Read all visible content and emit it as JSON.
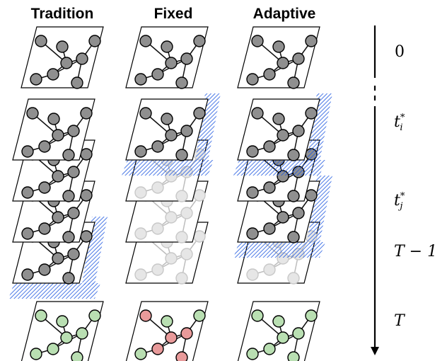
{
  "columns": [
    {
      "title": "Tradition"
    },
    {
      "title": "Fixed"
    },
    {
      "title": "Adaptive"
    }
  ],
  "time_axis": {
    "labels": [
      {
        "base": "0",
        "sup": "",
        "sub": "",
        "italic": false
      },
      {
        "base": "t",
        "sup": "*",
        "sub": "i",
        "italic": true
      },
      {
        "base": "t",
        "sup": "*",
        "sub": "j",
        "italic": true
      },
      {
        "base": "T − 1",
        "sup": "",
        "sub": "",
        "italic": true
      },
      {
        "base": "T",
        "sup": "",
        "sub": "",
        "italic": true
      }
    ]
  },
  "colors": {
    "node_gray": "#8f8f8f",
    "node_faded": "#e6e6e6",
    "node_green": "#b9dfb2",
    "node_red": "#e89a9a",
    "hatch_blue": "#1d57e0",
    "edge": "#111111",
    "edge_faded": "#bdbdbd"
  }
}
